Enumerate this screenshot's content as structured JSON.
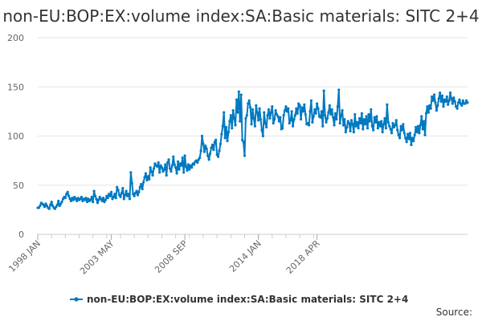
{
  "chart_data": {
    "type": "line",
    "title": "non-EU:BOP:EX:volume index:SA:Basic materials: SITC 2+4",
    "xlabel": "",
    "ylabel": "",
    "ylim": [
      0,
      200
    ],
    "y_ticks": [
      0,
      50,
      100,
      150,
      200
    ],
    "x_ticks": [
      "1998 JAN",
      "2003 MAY",
      "2008 SEP",
      "2014 JAN",
      "2018 APR"
    ],
    "x_range": [
      "1998 JAN",
      "2018 APR"
    ],
    "grid": "horizontal",
    "legend_position": "bottom",
    "source_label": "Source:",
    "series": [
      {
        "name": "non-EU:BOP:EX:volume index:SA:Basic materials: SITC 2+4",
        "color": "#0079c1",
        "values": [
          27,
          27,
          29,
          32,
          31,
          30,
          28,
          31,
          29,
          27,
          26,
          30,
          33,
          29,
          27,
          26,
          28,
          30,
          34,
          29,
          31,
          33,
          36,
          38,
          37,
          41,
          43,
          39,
          36,
          34,
          37,
          35,
          38,
          36,
          34,
          37,
          35,
          36,
          38,
          34,
          36,
          35,
          37,
          33,
          36,
          34,
          35,
          38,
          33,
          44,
          39,
          36,
          32,
          35,
          38,
          36,
          34,
          37,
          33,
          35,
          39,
          37,
          41,
          39,
          43,
          36,
          38,
          41,
          37,
          48,
          45,
          40,
          38,
          42,
          47,
          36,
          40,
          44,
          39,
          41,
          36,
          63,
          52,
          41,
          39,
          42,
          44,
          40,
          43,
          48,
          51,
          46,
          53,
          58,
          62,
          55,
          59,
          56,
          68,
          64,
          60,
          67,
          72,
          70,
          69,
          73,
          63,
          70,
          68,
          64,
          66,
          71,
          60,
          73,
          76,
          67,
          64,
          70,
          79,
          71,
          68,
          62,
          74,
          66,
          72,
          70,
          78,
          63,
          80,
          69,
          65,
          71,
          66,
          70,
          68,
          72,
          71,
          74,
          75,
          73,
          76,
          78,
          85,
          100,
          92,
          84,
          90,
          87,
          80,
          76,
          82,
          88,
          91,
          86,
          94,
          96,
          81,
          79,
          85,
          92,
          102,
          110,
          124,
          98,
          109,
          95,
          104,
          115,
          121,
          108,
          126,
          118,
          111,
          137,
          124,
          145,
          115,
          142,
          96,
          94,
          80,
          118,
          121,
          133,
          136,
          129,
          112,
          127,
          118,
          110,
          131,
          124,
          116,
          128,
          117,
          106,
          100,
          124,
          113,
          109,
          121,
          127,
          118,
          124,
          130,
          113,
          117,
          126,
          122,
          120,
          115,
          119,
          107,
          108,
          121,
          126,
          130,
          125,
          128,
          113,
          116,
          125,
          110,
          117,
          121,
          128,
          123,
          133,
          131,
          117,
          129,
          125,
          132,
          122,
          112,
          113,
          111,
          125,
          136,
          114,
          120,
          127,
          123,
          133,
          128,
          120,
          119,
          125,
          110,
          146,
          121,
          114,
          118,
          124,
          131,
          122,
          127,
          119,
          111,
          123,
          117,
          130,
          147,
          113,
          121,
          126,
          111,
          117,
          104,
          109,
          115,
          113,
          105,
          116,
          112,
          104,
          122,
          110,
          114,
          108,
          118,
          113,
          123,
          107,
          117,
          112,
          120,
          108,
          122,
          115,
          127,
          110,
          106,
          119,
          114,
          120,
          108,
          114,
          110,
          115,
          104,
          112,
          118,
          108,
          132,
          114,
          110,
          107,
          103,
          113,
          109,
          111,
          116,
          106,
          101,
          98,
          110,
          106,
          112,
          103,
          98,
          94,
          102,
          97,
          103,
          91,
          98,
          95,
          101,
          109,
          104,
          110,
          103,
          111,
          120,
          107,
          115,
          101,
          123,
          130,
          124,
          131,
          128,
          140,
          136,
          142,
          134,
          126,
          131,
          138,
          144,
          135,
          141,
          130,
          137,
          135,
          140,
          132,
          136,
          144,
          138,
          133,
          139,
          135,
          130,
          128,
          134,
          137,
          133,
          131,
          136,
          133,
          133,
          136,
          134
        ]
      }
    ]
  }
}
